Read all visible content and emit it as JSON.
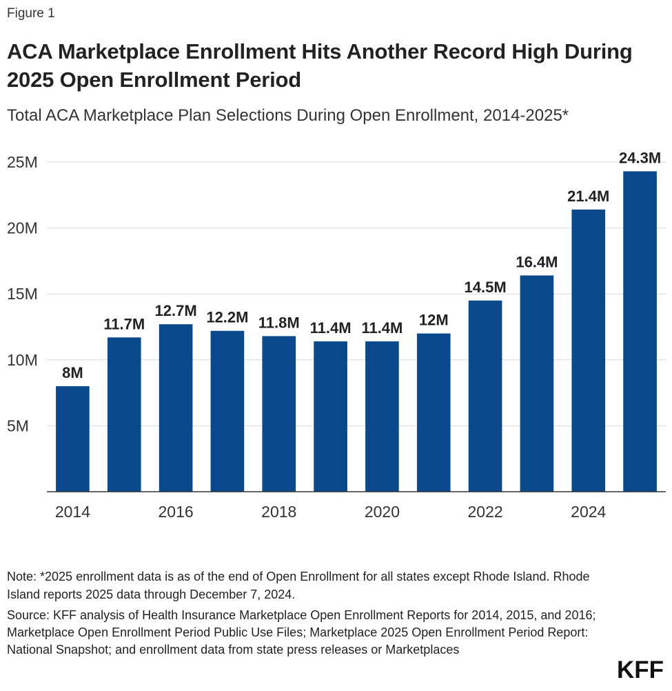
{
  "figure_label": "Figure 1",
  "title": "ACA Marketplace Enrollment Hits Another Record High During 2025 Open Enrollment Period",
  "subtitle": "Total ACA Marketplace Plan Selections During Open Enrollment, 2014-2025*",
  "note": "Note: *2025 enrollment data is as of the end of Open Enrollment for all states except Rhode Island. Rhode Island reports 2025 data through December 7, 2024.",
  "source": "Source: KFF analysis of Health Insurance Marketplace Open Enrollment Reports for 2014, 2015, and 2016; Marketplace Open Enrollment Period Public Use Files; Marketplace 2025 Open Enrollment Period Report: National Snapshot; and enrollment data from state press releases or Marketplaces",
  "logo_text": "KFF",
  "chart_data": {
    "type": "bar",
    "title": "",
    "xlabel": "",
    "ylabel": "",
    "categories": [
      "2014",
      "2015",
      "2016",
      "2017",
      "2018",
      "2019",
      "2020",
      "2021",
      "2022",
      "2023",
      "2024",
      "2025"
    ],
    "values": [
      8.0,
      11.7,
      12.7,
      12.2,
      11.8,
      11.4,
      11.4,
      12.0,
      14.5,
      16.4,
      21.4,
      24.3
    ],
    "data_labels": [
      "8M",
      "11.7M",
      "12.7M",
      "12.2M",
      "11.8M",
      "11.4M",
      "11.4M",
      "12M",
      "14.5M",
      "16.4M",
      "21.4M",
      "24.3M"
    ],
    "x_tick_labels": [
      "2014",
      "",
      "2016",
      "",
      "2018",
      "",
      "2020",
      "",
      "2022",
      "",
      "2024",
      ""
    ],
    "y_ticks": [
      5,
      10,
      15,
      20,
      25
    ],
    "y_tick_labels": [
      "5M",
      "10M",
      "15M",
      "20M",
      "25M"
    ],
    "ylim": [
      0,
      25
    ],
    "grid": true,
    "legend": "none",
    "bar_color": "#0a4a8c",
    "grid_color": "#d9d9d9",
    "axis_color": "#333333"
  }
}
